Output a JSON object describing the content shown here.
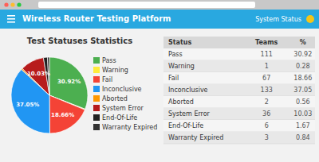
{
  "chart_data": {
    "type": "pie",
    "title": "Test Statuses Statistics",
    "categories": [
      "Pass",
      "Warning",
      "Fail",
      "Inconclusive",
      "Aborted",
      "System Error",
      "End-Of-Life",
      "Warranty Expired"
    ],
    "values": [
      30.92,
      0.28,
      18.66,
      37.05,
      0.56,
      10.03,
      1.67,
      0.84
    ],
    "value_labels": [
      "30.92%",
      null,
      "18.66%",
      "37.05%",
      null,
      "10.03%",
      null,
      null
    ],
    "colors": [
      "#4caf50",
      "#ffeb3b",
      "#f44336",
      "#2196f3",
      "#ff9800",
      "#b71c1c",
      "#212121",
      "#333333"
    ],
    "data_labels": true,
    "legend": "right"
  },
  "header": {
    "app_title": "Wireless Router Testing Platform",
    "status": "System Status"
  },
  "table": {
    "headers": [
      "Status",
      "Teams",
      "%"
    ],
    "rows": [
      [
        "Pass",
        "111",
        "30.92"
      ],
      [
        "Warning",
        "1",
        "0.28"
      ],
      [
        "Fail",
        "67",
        "18.66"
      ],
      [
        "Inconclusive",
        "133",
        "37.05"
      ],
      [
        "Aborted",
        "2",
        "0.56"
      ],
      [
        "System Error",
        "36",
        "10.03"
      ],
      [
        "End-Of-Life",
        "6",
        "1.67"
      ],
      [
        "Warranty Expired",
        "3",
        "0.84"
      ]
    ]
  }
}
